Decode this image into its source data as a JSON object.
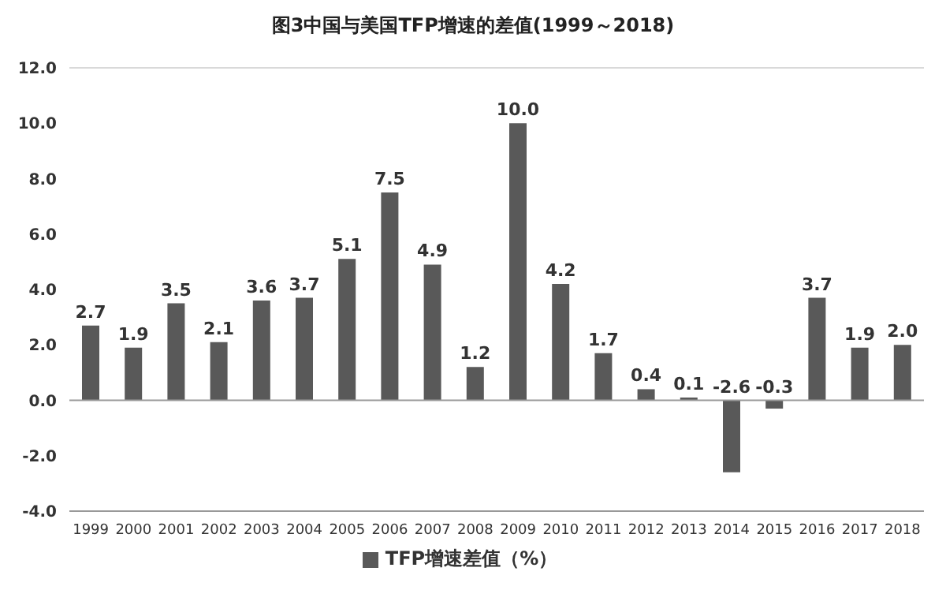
{
  "chart_data": {
    "type": "bar",
    "title": "图3中国与美国TFP增速的差值(1999～2018)",
    "categories": [
      "1999",
      "2000",
      "2001",
      "2002",
      "2003",
      "2004",
      "2005",
      "2006",
      "2007",
      "2008",
      "2009",
      "2010",
      "2011",
      "2012",
      "2013",
      "2014",
      "2015",
      "2016",
      "2017",
      "2018"
    ],
    "series": [
      {
        "name": "TFP增速差值（%）",
        "color": "#595959",
        "values": [
          2.7,
          1.9,
          3.5,
          2.1,
          3.6,
          3.7,
          5.1,
          7.5,
          4.9,
          1.2,
          10.0,
          4.2,
          1.7,
          0.4,
          0.1,
          -2.6,
          -0.3,
          3.7,
          1.9,
          2.0
        ],
        "value_labels": [
          "2.7",
          "1.9",
          "3.5",
          "2.1",
          "3.6",
          "3.7",
          "5.1",
          "7.5",
          "4.9",
          "1.2",
          "10.0",
          "4.2",
          "1.7",
          "0.4",
          "0.1",
          "-2.6",
          "-0.3",
          "3.7",
          "1.9",
          "2.0"
        ]
      }
    ],
    "ylim": [
      -4,
      12
    ],
    "yticks": [
      {
        "value": -4,
        "label": "-4.0"
      },
      {
        "value": -2,
        "label": "-2.0"
      },
      {
        "value": 0,
        "label": "0.0"
      },
      {
        "value": 2,
        "label": "2.0"
      },
      {
        "value": 4,
        "label": "4.0"
      },
      {
        "value": 6,
        "label": "6.0"
      },
      {
        "value": 8,
        "label": "8.0"
      },
      {
        "value": 10,
        "label": "10.0"
      },
      {
        "value": 12,
        "label": "12.0"
      }
    ],
    "grid": "y",
    "legend": "bottom"
  }
}
